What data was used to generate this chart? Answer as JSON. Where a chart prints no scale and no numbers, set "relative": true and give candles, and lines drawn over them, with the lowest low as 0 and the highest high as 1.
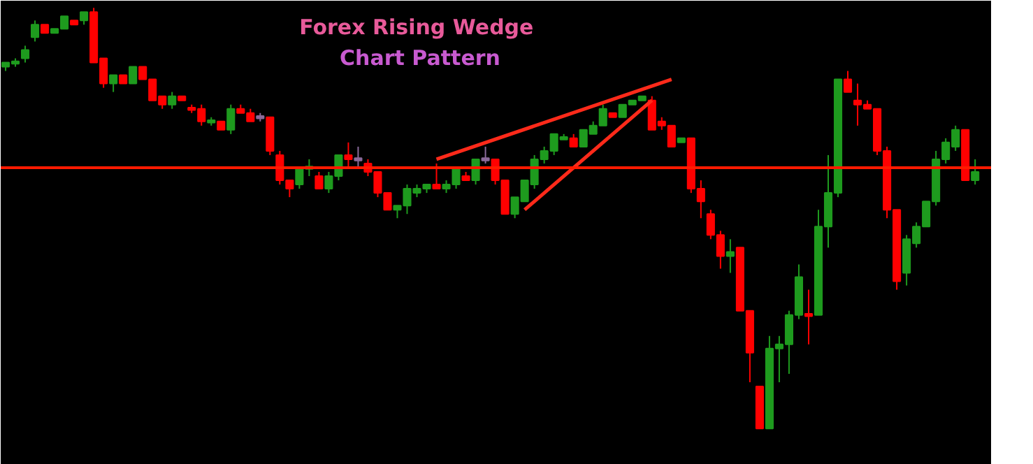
{
  "chart_data": {
    "type": "candlestick",
    "title": "Forex  Rising Wedge",
    "subtitle": "Chart Pattern",
    "relative": true,
    "grid": false,
    "categories": [
      null,
      null,
      null,
      null,
      null,
      null,
      null,
      null,
      null,
      null,
      null,
      null,
      null,
      null,
      null,
      null,
      null,
      null,
      null,
      null,
      null,
      null,
      null,
      null,
      null,
      null,
      null,
      null,
      null,
      null,
      null,
      null,
      null,
      null,
      null,
      null,
      null,
      null,
      null,
      null,
      null,
      null,
      null,
      null,
      null,
      null,
      null,
      null,
      null,
      null,
      null,
      null,
      null,
      null,
      null,
      null,
      null,
      null,
      null,
      null,
      null,
      null,
      null,
      null,
      null,
      null,
      null,
      null,
      null,
      null,
      null,
      null,
      null,
      null,
      null,
      null,
      null,
      null,
      null,
      null,
      null,
      null,
      null,
      null,
      null,
      null,
      null,
      null,
      null,
      null,
      null,
      null,
      null,
      null,
      null,
      null,
      null,
      null,
      null,
      null
    ],
    "ohlc": [
      [
        0.86,
        0.87,
        0.85,
        0.87
      ],
      [
        0.87,
        0.88,
        0.86,
        0.87
      ],
      [
        0.88,
        0.91,
        0.87,
        0.9
      ],
      [
        0.93,
        0.97,
        0.92,
        0.96
      ],
      [
        0.96,
        0.96,
        0.94,
        0.94
      ],
      [
        0.94,
        0.95,
        0.94,
        0.95
      ],
      [
        0.95,
        0.98,
        0.95,
        0.98
      ],
      [
        0.97,
        0.97,
        0.96,
        0.96
      ],
      [
        0.97,
        0.99,
        0.96,
        0.99
      ],
      [
        0.99,
        1.0,
        0.87,
        0.87
      ],
      [
        0.88,
        0.88,
        0.81,
        0.82
      ],
      [
        0.82,
        0.84,
        0.8,
        0.84
      ],
      [
        0.84,
        0.84,
        0.82,
        0.82
      ],
      [
        0.82,
        0.86,
        0.82,
        0.86
      ],
      [
        0.86,
        0.86,
        0.83,
        0.83
      ],
      [
        0.83,
        0.83,
        0.78,
        0.78
      ],
      [
        0.79,
        0.79,
        0.76,
        0.77
      ],
      [
        0.77,
        0.8,
        0.76,
        0.79
      ],
      [
        0.79,
        0.79,
        0.78,
        0.78
      ],
      [
        0.76,
        0.77,
        0.75,
        0.76
      ],
      [
        0.76,
        0.77,
        0.72,
        0.73
      ],
      [
        0.73,
        0.74,
        0.72,
        0.73
      ],
      [
        0.73,
        0.73,
        0.71,
        0.71
      ],
      [
        0.71,
        0.77,
        0.7,
        0.76
      ],
      [
        0.76,
        0.77,
        0.75,
        0.75
      ],
      [
        0.75,
        0.76,
        0.73,
        0.73
      ],
      [
        0.74,
        0.75,
        0.73,
        0.74
      ],
      [
        0.74,
        0.74,
        0.65,
        0.66
      ],
      [
        0.65,
        0.66,
        0.58,
        0.59
      ],
      [
        0.59,
        0.59,
        0.55,
        0.57
      ],
      [
        0.58,
        0.62,
        0.57,
        0.62
      ],
      [
        0.62,
        0.64,
        0.6,
        0.62
      ],
      [
        0.6,
        0.61,
        0.57,
        0.57
      ],
      [
        0.57,
        0.61,
        0.56,
        0.6
      ],
      [
        0.6,
        0.65,
        0.59,
        0.65
      ],
      [
        0.65,
        0.68,
        0.62,
        0.64
      ],
      [
        0.64,
        0.67,
        0.62,
        0.64
      ],
      [
        0.63,
        0.64,
        0.6,
        0.61
      ],
      [
        0.61,
        0.61,
        0.55,
        0.56
      ],
      [
        0.56,
        0.56,
        0.52,
        0.52
      ],
      [
        0.52,
        0.53,
        0.5,
        0.53
      ],
      [
        0.53,
        0.58,
        0.51,
        0.57
      ],
      [
        0.56,
        0.58,
        0.55,
        0.57
      ],
      [
        0.57,
        0.58,
        0.56,
        0.58
      ],
      [
        0.58,
        0.63,
        0.57,
        0.57
      ],
      [
        0.57,
        0.59,
        0.56,
        0.58
      ],
      [
        0.58,
        0.62,
        0.57,
        0.62
      ],
      [
        0.6,
        0.61,
        0.59,
        0.59
      ],
      [
        0.59,
        0.64,
        0.58,
        0.64
      ],
      [
        0.64,
        0.67,
        0.63,
        0.64
      ],
      [
        0.64,
        0.64,
        0.58,
        0.59
      ],
      [
        0.59,
        0.59,
        0.51,
        0.51
      ],
      [
        0.51,
        0.55,
        0.5,
        0.55
      ],
      [
        0.54,
        0.59,
        0.54,
        0.59
      ],
      [
        0.58,
        0.65,
        0.57,
        0.64
      ],
      [
        0.64,
        0.67,
        0.63,
        0.66
      ],
      [
        0.66,
        0.7,
        0.65,
        0.7
      ],
      [
        0.69,
        0.7,
        0.69,
        0.69
      ],
      [
        0.69,
        0.7,
        0.67,
        0.67
      ],
      [
        0.67,
        0.71,
        0.67,
        0.71
      ],
      [
        0.7,
        0.73,
        0.7,
        0.72
      ],
      [
        0.72,
        0.77,
        0.72,
        0.76
      ],
      [
        0.75,
        0.75,
        0.74,
        0.74
      ],
      [
        0.74,
        0.77,
        0.74,
        0.77
      ],
      [
        0.77,
        0.78,
        0.77,
        0.78
      ],
      [
        0.78,
        0.79,
        0.78,
        0.79
      ],
      [
        0.78,
        0.79,
        0.71,
        0.71
      ],
      [
        0.73,
        0.74,
        0.71,
        0.72
      ],
      [
        0.72,
        0.72,
        0.67,
        0.67
      ],
      [
        0.68,
        0.69,
        0.68,
        0.69
      ],
      [
        0.69,
        0.69,
        0.56,
        0.57
      ],
      [
        0.57,
        0.59,
        0.5,
        0.54
      ],
      [
        0.51,
        0.52,
        0.45,
        0.46
      ],
      [
        0.46,
        0.47,
        0.38,
        0.41
      ],
      [
        0.41,
        0.45,
        0.37,
        0.42
      ],
      [
        0.43,
        0.43,
        0.28,
        0.28
      ],
      [
        0.28,
        0.28,
        0.11,
        0.18
      ],
      [
        0.1,
        0.1,
        0.0,
        0.0
      ],
      [
        0.0,
        0.22,
        0.0,
        0.19
      ],
      [
        0.19,
        0.22,
        0.11,
        0.2
      ],
      [
        0.2,
        0.28,
        0.13,
        0.27
      ],
      [
        0.27,
        0.39,
        0.26,
        0.36
      ],
      [
        0.27,
        0.33,
        0.2,
        0.27
      ],
      [
        0.27,
        0.52,
        0.27,
        0.48
      ],
      [
        0.48,
        0.65,
        0.43,
        0.56
      ],
      [
        0.56,
        0.83,
        0.55,
        0.83
      ],
      [
        0.83,
        0.85,
        0.8,
        0.8
      ],
      [
        0.78,
        0.82,
        0.72,
        0.77
      ],
      [
        0.77,
        0.78,
        0.76,
        0.76
      ],
      [
        0.76,
        0.76,
        0.65,
        0.66
      ],
      [
        0.66,
        0.67,
        0.5,
        0.52
      ],
      [
        0.52,
        0.52,
        0.33,
        0.35
      ],
      [
        0.37,
        0.46,
        0.34,
        0.45
      ],
      [
        0.44,
        0.49,
        0.43,
        0.48
      ],
      [
        0.48,
        0.54,
        0.48,
        0.54
      ],
      [
        0.54,
        0.66,
        0.53,
        0.64
      ],
      [
        0.64,
        0.69,
        0.63,
        0.68
      ],
      [
        0.67,
        0.72,
        0.66,
        0.71
      ],
      [
        0.71,
        0.71,
        0.59,
        0.59
      ],
      [
        0.59,
        0.64,
        0.58,
        0.61
      ]
    ],
    "colors": [
      "#1e9b1e",
      "#1e9b1e",
      "#1e9b1e",
      "#1e9b1e",
      "#ff0000",
      "#1e9b1e",
      "#1e9b1e",
      "#ff0000",
      "#1e9b1e",
      "#ff0000",
      "#ff0000",
      "#1e9b1e",
      "#ff0000",
      "#1e9b1e",
      "#ff0000",
      "#ff0000",
      "#ff0000",
      "#1e9b1e",
      "#ff0000",
      "#ff0000",
      "#ff0000",
      "#1e9b1e",
      "#ff0000",
      "#1e9b1e",
      "#ff0000",
      "#ff0000",
      "#8a6a9a",
      "#ff0000",
      "#ff0000",
      "#ff0000",
      "#1e9b1e",
      "#1e9b1e",
      "#ff0000",
      "#1e9b1e",
      "#1e9b1e",
      "#ff0000",
      "#8a6a9a",
      "#ff0000",
      "#ff0000",
      "#ff0000",
      "#1e9b1e",
      "#1e9b1e",
      "#1e9b1e",
      "#1e9b1e",
      "#ff0000",
      "#1e9b1e",
      "#1e9b1e",
      "#ff0000",
      "#1e9b1e",
      "#8a6a9a",
      "#ff0000",
      "#ff0000",
      "#1e9b1e",
      "#1e9b1e",
      "#1e9b1e",
      "#1e9b1e",
      "#1e9b1e",
      "#1e9b1e",
      "#ff0000",
      "#1e9b1e",
      "#1e9b1e",
      "#1e9b1e",
      "#ff0000",
      "#1e9b1e",
      "#1e9b1e",
      "#1e9b1e",
      "#ff0000",
      "#ff0000",
      "#ff0000",
      "#1e9b1e",
      "#ff0000",
      "#ff0000",
      "#ff0000",
      "#ff0000",
      "#1e9b1e",
      "#ff0000",
      "#ff0000",
      "#ff0000",
      "#1e9b1e",
      "#1e9b1e",
      "#1e9b1e",
      "#1e9b1e",
      "#ff0000",
      "#1e9b1e",
      "#1e9b1e",
      "#1e9b1e",
      "#ff0000",
      "#ff0000",
      "#ff0000",
      "#ff0000",
      "#ff0000",
      "#ff0000",
      "#1e9b1e",
      "#1e9b1e",
      "#1e9b1e",
      "#1e9b1e",
      "#1e9b1e",
      "#1e9b1e",
      "#ff0000",
      "#1e9b1e"
    ],
    "series": [
      {
        "type": "line",
        "values": [
          null,
          null,
          null,
          null,
          null,
          null,
          null,
          null,
          null,
          null,
          null,
          null,
          null,
          null,
          null,
          null,
          null,
          null,
          null,
          null,
          null,
          null,
          null,
          null,
          null,
          null,
          null,
          null,
          null,
          null,
          null,
          null,
          null,
          null,
          null,
          null,
          null,
          null,
          null,
          null,
          null,
          null,
          null,
          null,
          0.64,
          null,
          null,
          null,
          null,
          null,
          null,
          null,
          null,
          null,
          null,
          null,
          null,
          null,
          null,
          null,
          null,
          null,
          null,
          null,
          null,
          null,
          null,
          null,
          0.83,
          null,
          null,
          null,
          null,
          null,
          null,
          null,
          null,
          null,
          null,
          null,
          null,
          null,
          null,
          null,
          null,
          null,
          null,
          null,
          null,
          null,
          null,
          null,
          null,
          null,
          null,
          null,
          null,
          null,
          null,
          null
        ],
        "color": "#ff2a1a"
      },
      {
        "type": "line",
        "values": [
          null,
          null,
          null,
          null,
          null,
          null,
          null,
          null,
          null,
          null,
          null,
          null,
          null,
          null,
          null,
          null,
          null,
          null,
          null,
          null,
          null,
          null,
          null,
          null,
          null,
          null,
          null,
          null,
          null,
          null,
          null,
          null,
          null,
          null,
          null,
          null,
          null,
          null,
          null,
          null,
          null,
          null,
          null,
          null,
          null,
          null,
          null,
          null,
          null,
          null,
          null,
          null,
          null,
          0.52,
          null,
          null,
          null,
          null,
          null,
          null,
          null,
          null,
          null,
          null,
          null,
          null,
          0.78,
          null,
          null,
          null,
          null,
          null,
          null,
          null,
          null,
          null,
          null,
          null,
          null,
          null,
          null,
          null,
          null,
          null,
          null,
          null,
          null,
          null,
          null,
          null,
          null,
          null,
          null,
          null,
          null,
          null,
          null,
          null,
          null,
          null
        ],
        "color": "#ff2a1a"
      }
    ],
    "ref_lines": [
      {
        "axis": "y",
        "value": 0.62,
        "color": "#ff1a00"
      }
    ]
  }
}
